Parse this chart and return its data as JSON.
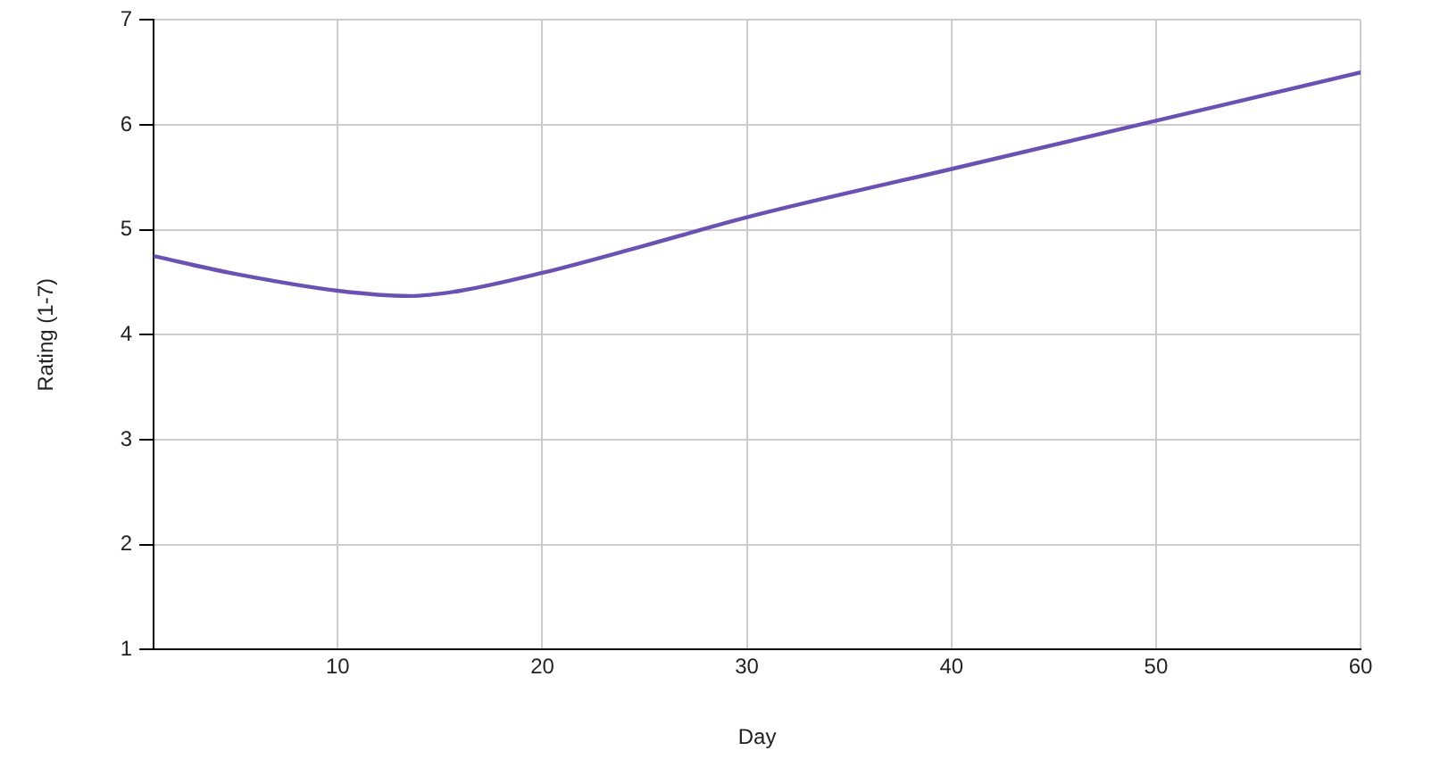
{
  "chart_data": {
    "type": "line",
    "xlabel": "Day",
    "ylabel": "Rating (1-7)",
    "x": [
      1,
      5,
      10,
      13.5,
      16,
      20,
      25,
      30,
      40,
      50,
      60
    ],
    "series": [
      {
        "color": "#6a52b3",
        "values": [
          4.75,
          4.58,
          4.42,
          4.37,
          4.42,
          4.59,
          4.85,
          5.12,
          5.58,
          6.04,
          6.5
        ]
      }
    ],
    "xlim": [
      1,
      60
    ],
    "xticks": [
      10,
      20,
      30,
      40,
      50,
      60
    ],
    "ylim": [
      1,
      7
    ],
    "yticks": [
      1,
      2,
      3,
      4,
      5,
      6,
      7
    ],
    "grid": true,
    "legend": false,
    "marker": "none",
    "line_style": "solid"
  }
}
